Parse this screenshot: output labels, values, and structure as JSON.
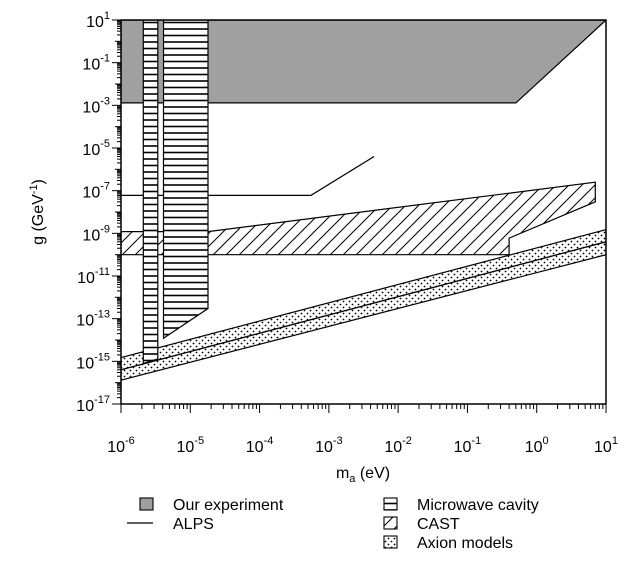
{
  "chart_data": {
    "type": "area",
    "title": "",
    "xlabel": {
      "main": "m",
      "sub": "a",
      "unit": " (eV)"
    },
    "ylabel": {
      "main": "g (GeV",
      "sup": "-1",
      "tail": ")"
    },
    "x_scale": "log",
    "y_scale": "log",
    "xlim": [
      1e-06,
      10
    ],
    "ylim": [
      1e-17,
      10
    ],
    "grid": false,
    "legend_position": "bottom",
    "x_ticks": [
      {
        "base": "10",
        "exp": "-6",
        "value": 1e-06
      },
      {
        "base": "10",
        "exp": "-5",
        "value": 1e-05
      },
      {
        "base": "10",
        "exp": "-4",
        "value": 0.0001
      },
      {
        "base": "10",
        "exp": "-3",
        "value": 0.001
      },
      {
        "base": "10",
        "exp": "-2",
        "value": 0.01
      },
      {
        "base": "10",
        "exp": "-1",
        "value": 0.1
      },
      {
        "base": "10",
        "exp": "0",
        "value": 1
      },
      {
        "base": "10",
        "exp": "1",
        "value": 10
      }
    ],
    "y_ticks": [
      {
        "base": "10",
        "exp": "1",
        "value": 10
      },
      {
        "base": "10",
        "exp": "-1",
        "value": 0.1
      },
      {
        "base": "10",
        "exp": "-3",
        "value": 0.001
      },
      {
        "base": "10",
        "exp": "-5",
        "value": 1e-05
      },
      {
        "base": "10",
        "exp": "-7",
        "value": 1e-07
      },
      {
        "base": "10",
        "exp": "-9",
        "value": 1e-09
      },
      {
        "base": "10",
        "exp": "-11",
        "value": 1e-11
      },
      {
        "base": "10",
        "exp": "-13",
        "value": 1e-13
      },
      {
        "base": "10",
        "exp": "-15",
        "value": 1e-15
      },
      {
        "base": "10",
        "exp": "-17",
        "value": 1e-17
      }
    ],
    "series": [
      {
        "name": "Our experiment",
        "style": "gray-fill",
        "color": "#a0a0a0",
        "polygon": [
          [
            1e-06,
            10
          ],
          [
            10,
            10
          ],
          [
            0.5,
            0.0013
          ],
          [
            1e-06,
            0.0013
          ]
        ]
      },
      {
        "name": "ALPS",
        "style": "line",
        "color": "#000000",
        "polygon": [
          [
            1e-06,
            6e-08
          ],
          [
            0.00055,
            6e-08
          ],
          [
            0.0045,
            4e-06
          ]
        ]
      },
      {
        "name": "Microwave cavity",
        "style": "horizontal-hatch",
        "color": "#000000",
        "regions": [
          [
            [
              2.1e-06,
              10
            ],
            [
              3.4e-06,
              10
            ],
            [
              3.4e-06,
              1.3e-15
            ],
            [
              2.1e-06,
              8e-16
            ]
          ],
          [
            [
              4.1e-06,
              10
            ],
            [
              1.8e-05,
              10
            ],
            [
              1.8e-05,
              3e-13
            ],
            [
              4.1e-06,
              1.2e-14
            ]
          ]
        ]
      },
      {
        "name": "CAST",
        "style": "diagonal-hatch",
        "color": "#000000",
        "polygon": [
          [
            1e-06,
            1.2e-09
          ],
          [
            1e-06,
            1e-10
          ],
          [
            0.4,
            1e-10
          ],
          [
            0.4,
            6e-10
          ],
          [
            7,
            3e-08
          ],
          [
            7,
            2.5e-07
          ],
          [
            1.8e-05,
            1.2e-09
          ]
        ]
      },
      {
        "name": "Axion models",
        "style": "dotted-fill",
        "color": "#000000",
        "polygon": [
          [
            1e-06,
            1.3e-16
          ],
          [
            10,
            1e-10
          ],
          [
            10,
            1.5e-09
          ],
          [
            1e-06,
            1.5e-15
          ]
        ],
        "center_line": [
          [
            1e-06,
            4e-16
          ],
          [
            10,
            4e-10
          ]
        ]
      }
    ],
    "legend": [
      {
        "label": "Our experiment",
        "swatch": "gray-fill"
      },
      {
        "label": "ALPS",
        "swatch": "line"
      },
      {
        "label": "Microwave cavity",
        "swatch": "horizontal-hatch"
      },
      {
        "label": "CAST",
        "swatch": "diagonal-hatch"
      },
      {
        "label": "Axion models",
        "swatch": "dotted-fill"
      }
    ]
  }
}
